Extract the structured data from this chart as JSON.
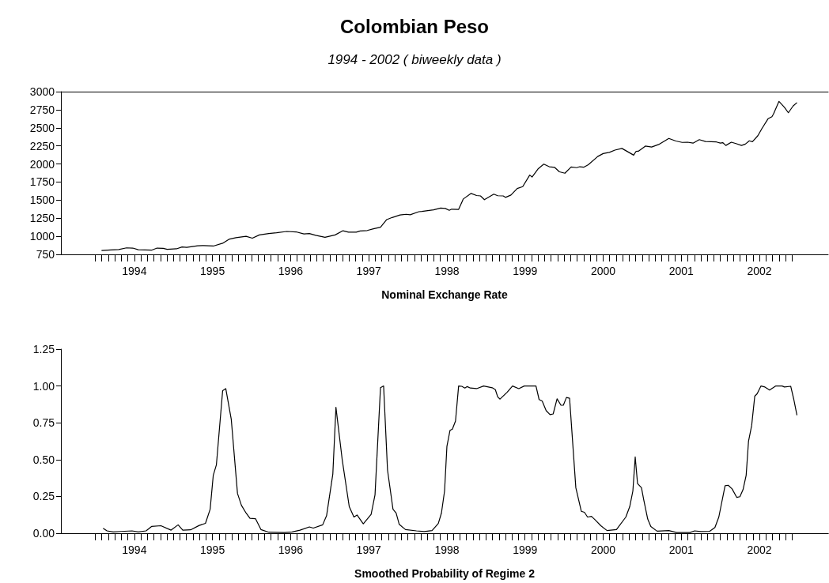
{
  "chart_data": [
    {
      "type": "line",
      "title": "Colombian Peso",
      "subtitle": "1994 - 2002 ( biweekly data )",
      "xlabel": "Nominal Exchange Rate",
      "color": "#000000",
      "line_style": "solid",
      "grid": false,
      "x": [
        1994.08,
        1994.2,
        1994.3,
        1994.4,
        1994.48,
        1994.55,
        1994.72,
        1994.79,
        1994.87,
        1994.92,
        1995.04,
        1995.11,
        1995.17,
        1995.31,
        1995.39,
        1995.51,
        1995.63,
        1995.71,
        1995.8,
        1995.93,
        1996.01,
        1996.1,
        1996.22,
        1996.32,
        1996.45,
        1996.57,
        1996.67,
        1996.74,
        1996.82,
        1996.94,
        1997.07,
        1997.17,
        1997.24,
        1997.34,
        1997.39,
        1997.48,
        1997.56,
        1997.65,
        1997.73,
        1997.8,
        1997.9,
        1997.98,
        1998.03,
        1998.14,
        1998.18,
        1998.33,
        1998.42,
        1998.48,
        1998.53,
        1998.56,
        1998.65,
        1998.71,
        1998.81,
        1998.88,
        1998.93,
        1998.98,
        1999.1,
        1999.15,
        1999.22,
        1999.25,
        1999.32,
        1999.4,
        1999.47,
        1999.56,
        1999.59,
        1999.67,
        1999.74,
        1999.81,
        1999.88,
        1999.94,
        2000.01,
        2000.09,
        2000.16,
        2000.2,
        2000.25,
        2000.31,
        2000.43,
        2000.5,
        2000.58,
        2000.65,
        2000.74,
        2000.89,
        2000.92,
        2000.95,
        2001.04,
        2001.12,
        2001.21,
        2001.34,
        2001.43,
        2001.51,
        2001.58,
        2001.65,
        2001.73,
        2001.81,
        2001.95,
        2002.0,
        2002.03,
        2002.07,
        2002.14,
        2002.2,
        2002.27,
        2002.32,
        2002.37,
        2002.41,
        2002.48,
        2002.53,
        2002.61,
        2002.66,
        2002.68,
        2002.75,
        2002.82,
        2002.87,
        2002.93,
        2002.98
      ],
      "values": [
        804,
        811,
        817,
        840,
        837,
        814,
        808,
        837,
        833,
        820,
        827,
        853,
        846,
        869,
        872,
        865,
        904,
        958,
        981,
        1000,
        974,
        1019,
        1038,
        1048,
        1067,
        1061,
        1032,
        1038,
        1013,
        987,
        1019,
        1077,
        1058,
        1058,
        1074,
        1080,
        1103,
        1125,
        1231,
        1260,
        1295,
        1304,
        1298,
        1340,
        1343,
        1365,
        1391,
        1385,
        1359,
        1375,
        1372,
        1516,
        1593,
        1564,
        1558,
        1506,
        1583,
        1561,
        1558,
        1538,
        1570,
        1660,
        1686,
        1846,
        1820,
        1936,
        1997,
        1962,
        1952,
        1891,
        1872,
        1958,
        1949,
        1962,
        1955,
        1990,
        2103,
        2144,
        2160,
        2192,
        2215,
        2122,
        2173,
        2176,
        2247,
        2234,
        2269,
        2353,
        2317,
        2298,
        2301,
        2288,
        2336,
        2311,
        2304,
        2288,
        2295,
        2256,
        2301,
        2282,
        2256,
        2275,
        2320,
        2307,
        2391,
        2487,
        2625,
        2654,
        2692,
        2865,
        2782,
        2708,
        2801,
        2849
      ],
      "xlim": [
        1993.56,
        2003.38
      ],
      "xticks": [
        {
          "value": 1994,
          "label": null
        },
        {
          "value": 1994.0833,
          "label": null
        },
        {
          "value": 1994.1667,
          "label": null
        },
        {
          "value": 1994.25,
          "label": null
        },
        {
          "value": 1994.3333,
          "label": null
        },
        {
          "value": 1994.4167,
          "label": null
        },
        {
          "value": 1994.5,
          "label": "1994"
        },
        {
          "value": 1994.5833,
          "label": null
        },
        {
          "value": 1994.6667,
          "label": null
        },
        {
          "value": 1994.75,
          "label": null
        },
        {
          "value": 1994.8333,
          "label": null
        },
        {
          "value": 1994.9167,
          "label": null
        },
        {
          "value": 1995,
          "label": null
        },
        {
          "value": 1995.0833,
          "label": null
        },
        {
          "value": 1995.1667,
          "label": null
        },
        {
          "value": 1995.25,
          "label": null
        },
        {
          "value": 1995.3333,
          "label": null
        },
        {
          "value": 1995.4167,
          "label": null
        },
        {
          "value": 1995.5,
          "label": "1995"
        },
        {
          "value": 1995.5833,
          "label": null
        },
        {
          "value": 1995.6667,
          "label": null
        },
        {
          "value": 1995.75,
          "label": null
        },
        {
          "value": 1995.8333,
          "label": null
        },
        {
          "value": 1995.9167,
          "label": null
        },
        {
          "value": 1996,
          "label": null
        },
        {
          "value": 1996.0833,
          "label": null
        },
        {
          "value": 1996.1667,
          "label": null
        },
        {
          "value": 1996.25,
          "label": null
        },
        {
          "value": 1996.3333,
          "label": null
        },
        {
          "value": 1996.4167,
          "label": null
        },
        {
          "value": 1996.5,
          "label": "1996"
        },
        {
          "value": 1996.5833,
          "label": null
        },
        {
          "value": 1996.6667,
          "label": null
        },
        {
          "value": 1996.75,
          "label": null
        },
        {
          "value": 1996.8333,
          "label": null
        },
        {
          "value": 1996.9167,
          "label": null
        },
        {
          "value": 1997,
          "label": null
        },
        {
          "value": 1997.0833,
          "label": null
        },
        {
          "value": 1997.1667,
          "label": null
        },
        {
          "value": 1997.25,
          "label": null
        },
        {
          "value": 1997.3333,
          "label": null
        },
        {
          "value": 1997.4167,
          "label": null
        },
        {
          "value": 1997.5,
          "label": "1997"
        },
        {
          "value": 1997.5833,
          "label": null
        },
        {
          "value": 1997.6667,
          "label": null
        },
        {
          "value": 1997.75,
          "label": null
        },
        {
          "value": 1997.8333,
          "label": null
        },
        {
          "value": 1997.9167,
          "label": null
        },
        {
          "value": 1998,
          "label": null
        },
        {
          "value": 1998.0833,
          "label": null
        },
        {
          "value": 1998.1667,
          "label": null
        },
        {
          "value": 1998.25,
          "label": null
        },
        {
          "value": 1998.3333,
          "label": null
        },
        {
          "value": 1998.4167,
          "label": null
        },
        {
          "value": 1998.5,
          "label": "1998"
        },
        {
          "value": 1998.5833,
          "label": null
        },
        {
          "value": 1998.6667,
          "label": null
        },
        {
          "value": 1998.75,
          "label": null
        },
        {
          "value": 1998.8333,
          "label": null
        },
        {
          "value": 1998.9167,
          "label": null
        },
        {
          "value": 1999,
          "label": null
        },
        {
          "value": 1999.0833,
          "label": null
        },
        {
          "value": 1999.1667,
          "label": null
        },
        {
          "value": 1999.25,
          "label": null
        },
        {
          "value": 1999.3333,
          "label": null
        },
        {
          "value": 1999.4167,
          "label": null
        },
        {
          "value": 1999.5,
          "label": "1999"
        },
        {
          "value": 1999.5833,
          "label": null
        },
        {
          "value": 1999.6667,
          "label": null
        },
        {
          "value": 1999.75,
          "label": null
        },
        {
          "value": 1999.8333,
          "label": null
        },
        {
          "value": 1999.9167,
          "label": null
        },
        {
          "value": 2000,
          "label": null
        },
        {
          "value": 2000.0833,
          "label": null
        },
        {
          "value": 2000.1667,
          "label": null
        },
        {
          "value": 2000.25,
          "label": null
        },
        {
          "value": 2000.3333,
          "label": null
        },
        {
          "value": 2000.4167,
          "label": null
        },
        {
          "value": 2000.5,
          "label": "2000"
        },
        {
          "value": 2000.5833,
          "label": null
        },
        {
          "value": 2000.6667,
          "label": null
        },
        {
          "value": 2000.75,
          "label": null
        },
        {
          "value": 2000.8333,
          "label": null
        },
        {
          "value": 2000.9167,
          "label": null
        },
        {
          "value": 2001,
          "label": null
        },
        {
          "value": 2001.0833,
          "label": null
        },
        {
          "value": 2001.1667,
          "label": null
        },
        {
          "value": 2001.25,
          "label": null
        },
        {
          "value": 2001.3333,
          "label": null
        },
        {
          "value": 2001.4167,
          "label": null
        },
        {
          "value": 2001.5,
          "label": "2001"
        },
        {
          "value": 2001.5833,
          "label": null
        },
        {
          "value": 2001.6667,
          "label": null
        },
        {
          "value": 2001.75,
          "label": null
        },
        {
          "value": 2001.8333,
          "label": null
        },
        {
          "value": 2001.9167,
          "label": null
        },
        {
          "value": 2002,
          "label": null
        },
        {
          "value": 2002.0833,
          "label": null
        },
        {
          "value": 2002.1667,
          "label": null
        },
        {
          "value": 2002.25,
          "label": null
        },
        {
          "value": 2002.3333,
          "label": null
        },
        {
          "value": 2002.4167,
          "label": null
        },
        {
          "value": 2002.5,
          "label": "2002"
        },
        {
          "value": 2002.5833,
          "label": null
        },
        {
          "value": 2002.6667,
          "label": null
        },
        {
          "value": 2002.75,
          "label": null
        },
        {
          "value": 2002.8333,
          "label": null
        },
        {
          "value": 2002.9167,
          "label": null
        }
      ],
      "ylim": [
        750,
        3000
      ],
      "yticks": [
        750,
        1000,
        1250,
        1500,
        1750,
        2000,
        2250,
        2500,
        2750,
        3000
      ]
    },
    {
      "type": "line",
      "xlabel": "Smoothed Probability of Regime 2",
      "color": "#000000",
      "line_style": "solid",
      "grid": false,
      "x": [
        1994.1,
        1994.15,
        1994.23,
        1994.33,
        1994.47,
        1994.55,
        1994.65,
        1994.72,
        1994.84,
        1994.97,
        1995.06,
        1995.12,
        1995.22,
        1995.33,
        1995.41,
        1995.47,
        1995.51,
        1995.55,
        1995.63,
        1995.67,
        1995.74,
        1995.82,
        1995.87,
        1995.93,
        1995.98,
        1996.05,
        1996.12,
        1996.22,
        1996.42,
        1996.52,
        1996.62,
        1996.74,
        1996.79,
        1996.91,
        1996.96,
        1997.04,
        1997.08,
        1997.16,
        1997.25,
        1997.31,
        1997.35,
        1997.43,
        1997.53,
        1997.58,
        1997.65,
        1997.69,
        1997.74,
        1997.81,
        1997.85,
        1997.89,
        1997.97,
        1998.11,
        1998.21,
        1998.31,
        1998.39,
        1998.43,
        1998.47,
        1998.5,
        1998.54,
        1998.57,
        1998.61,
        1998.65,
        1998.69,
        1998.73,
        1998.76,
        1998.8,
        1998.88,
        1998.97,
        1999.08,
        1999.12,
        1999.15,
        1999.18,
        1999.27,
        1999.34,
        1999.42,
        1999.49,
        1999.64,
        1999.68,
        1999.72,
        1999.77,
        1999.82,
        1999.86,
        1999.91,
        1999.96,
        1999.99,
        2000.03,
        2000.07,
        2000.15,
        2000.22,
        2000.26,
        2000.3,
        2000.35,
        2000.4,
        2000.47,
        2000.55,
        2000.67,
        2000.79,
        2000.84,
        2000.88,
        2000.91,
        2000.94,
        2000.99,
        2001.02,
        2001.07,
        2001.11,
        2001.19,
        2001.34,
        2001.44,
        2001.61,
        2001.67,
        2001.75,
        2001.86,
        2001.93,
        2001.98,
        2002.06,
        2002.1,
        2002.15,
        2002.21,
        2002.25,
        2002.29,
        2002.33,
        2002.36,
        2002.4,
        2002.44,
        2002.47,
        2002.52,
        2002.57,
        2002.63,
        2002.71,
        2002.79,
        2002.82,
        2002.9,
        2002.94,
        2002.98
      ],
      "values": [
        0.034,
        0.016,
        0.009,
        0.012,
        0.016,
        0.009,
        0.016,
        0.046,
        0.051,
        0.021,
        0.057,
        0.021,
        0.023,
        0.053,
        0.067,
        0.163,
        0.394,
        0.465,
        0.968,
        0.982,
        0.775,
        0.27,
        0.19,
        0.137,
        0.101,
        0.099,
        0.025,
        0.007,
        0.005,
        0.009,
        0.021,
        0.043,
        0.035,
        0.057,
        0.119,
        0.402,
        0.855,
        0.5,
        0.181,
        0.11,
        0.124,
        0.064,
        0.128,
        0.261,
        0.988,
        1.0,
        0.429,
        0.163,
        0.137,
        0.06,
        0.025,
        0.016,
        0.011,
        0.018,
        0.066,
        0.137,
        0.287,
        0.589,
        0.699,
        0.707,
        0.762,
        1.0,
        0.998,
        0.986,
        0.996,
        0.986,
        0.982,
        1.0,
        0.988,
        0.975,
        0.926,
        0.911,
        0.957,
        1.0,
        0.982,
        1.0,
        1.0,
        0.908,
        0.897,
        0.833,
        0.805,
        0.81,
        0.913,
        0.869,
        0.869,
        0.922,
        0.917,
        0.309,
        0.149,
        0.142,
        0.11,
        0.115,
        0.089,
        0.051,
        0.018,
        0.025,
        0.11,
        0.181,
        0.287,
        0.518,
        0.337,
        0.309,
        0.225,
        0.096,
        0.046,
        0.014,
        0.018,
        0.005,
        0.005,
        0.016,
        0.011,
        0.012,
        0.039,
        0.11,
        0.323,
        0.326,
        0.301,
        0.243,
        0.248,
        0.296,
        0.394,
        0.624,
        0.73,
        0.931,
        0.947,
        1.0,
        0.993,
        0.972,
        1.0,
        1.0,
        0.993,
        0.998,
        0.908,
        0.801
      ],
      "xlim": [
        1993.56,
        2003.38
      ],
      "xticks": [
        {
          "value": 1994,
          "label": null
        },
        {
          "value": 1994.0833,
          "label": null
        },
        {
          "value": 1994.1667,
          "label": null
        },
        {
          "value": 1994.25,
          "label": null
        },
        {
          "value": 1994.3333,
          "label": null
        },
        {
          "value": 1994.4167,
          "label": null
        },
        {
          "value": 1994.5,
          "label": "1994"
        },
        {
          "value": 1994.5833,
          "label": null
        },
        {
          "value": 1994.6667,
          "label": null
        },
        {
          "value": 1994.75,
          "label": null
        },
        {
          "value": 1994.8333,
          "label": null
        },
        {
          "value": 1994.9167,
          "label": null
        },
        {
          "value": 1995,
          "label": null
        },
        {
          "value": 1995.0833,
          "label": null
        },
        {
          "value": 1995.1667,
          "label": null
        },
        {
          "value": 1995.25,
          "label": null
        },
        {
          "value": 1995.3333,
          "label": null
        },
        {
          "value": 1995.4167,
          "label": null
        },
        {
          "value": 1995.5,
          "label": "1995"
        },
        {
          "value": 1995.5833,
          "label": null
        },
        {
          "value": 1995.6667,
          "label": null
        },
        {
          "value": 1995.75,
          "label": null
        },
        {
          "value": 1995.8333,
          "label": null
        },
        {
          "value": 1995.9167,
          "label": null
        },
        {
          "value": 1996,
          "label": null
        },
        {
          "value": 1996.0833,
          "label": null
        },
        {
          "value": 1996.1667,
          "label": null
        },
        {
          "value": 1996.25,
          "label": null
        },
        {
          "value": 1996.3333,
          "label": null
        },
        {
          "value": 1996.4167,
          "label": null
        },
        {
          "value": 1996.5,
          "label": "1996"
        },
        {
          "value": 1996.5833,
          "label": null
        },
        {
          "value": 1996.6667,
          "label": null
        },
        {
          "value": 1996.75,
          "label": null
        },
        {
          "value": 1996.8333,
          "label": null
        },
        {
          "value": 1996.9167,
          "label": null
        },
        {
          "value": 1997,
          "label": null
        },
        {
          "value": 1997.0833,
          "label": null
        },
        {
          "value": 1997.1667,
          "label": null
        },
        {
          "value": 1997.25,
          "label": null
        },
        {
          "value": 1997.3333,
          "label": null
        },
        {
          "value": 1997.4167,
          "label": null
        },
        {
          "value": 1997.5,
          "label": "1997"
        },
        {
          "value": 1997.5833,
          "label": null
        },
        {
          "value": 1997.6667,
          "label": null
        },
        {
          "value": 1997.75,
          "label": null
        },
        {
          "value": 1997.8333,
          "label": null
        },
        {
          "value": 1997.9167,
          "label": null
        },
        {
          "value": 1998,
          "label": null
        },
        {
          "value": 1998.0833,
          "label": null
        },
        {
          "value": 1998.1667,
          "label": null
        },
        {
          "value": 1998.25,
          "label": null
        },
        {
          "value": 1998.3333,
          "label": null
        },
        {
          "value": 1998.4167,
          "label": null
        },
        {
          "value": 1998.5,
          "label": "1998"
        },
        {
          "value": 1998.5833,
          "label": null
        },
        {
          "value": 1998.6667,
          "label": null
        },
        {
          "value": 1998.75,
          "label": null
        },
        {
          "value": 1998.8333,
          "label": null
        },
        {
          "value": 1998.9167,
          "label": null
        },
        {
          "value": 1999,
          "label": null
        },
        {
          "value": 1999.0833,
          "label": null
        },
        {
          "value": 1999.1667,
          "label": null
        },
        {
          "value": 1999.25,
          "label": null
        },
        {
          "value": 1999.3333,
          "label": null
        },
        {
          "value": 1999.4167,
          "label": null
        },
        {
          "value": 1999.5,
          "label": "1999"
        },
        {
          "value": 1999.5833,
          "label": null
        },
        {
          "value": 1999.6667,
          "label": null
        },
        {
          "value": 1999.75,
          "label": null
        },
        {
          "value": 1999.8333,
          "label": null
        },
        {
          "value": 1999.9167,
          "label": null
        },
        {
          "value": 2000,
          "label": null
        },
        {
          "value": 2000.0833,
          "label": null
        },
        {
          "value": 2000.1667,
          "label": null
        },
        {
          "value": 2000.25,
          "label": null
        },
        {
          "value": 2000.3333,
          "label": null
        },
        {
          "value": 2000.4167,
          "label": null
        },
        {
          "value": 2000.5,
          "label": "2000"
        },
        {
          "value": 2000.5833,
          "label": null
        },
        {
          "value": 2000.6667,
          "label": null
        },
        {
          "value": 2000.75,
          "label": null
        },
        {
          "value": 2000.8333,
          "label": null
        },
        {
          "value": 2000.9167,
          "label": null
        },
        {
          "value": 2001,
          "label": null
        },
        {
          "value": 2001.0833,
          "label": null
        },
        {
          "value": 2001.1667,
          "label": null
        },
        {
          "value": 2001.25,
          "label": null
        },
        {
          "value": 2001.3333,
          "label": null
        },
        {
          "value": 2001.4167,
          "label": null
        },
        {
          "value": 2001.5,
          "label": "2001"
        },
        {
          "value": 2001.5833,
          "label": null
        },
        {
          "value": 2001.6667,
          "label": null
        },
        {
          "value": 2001.75,
          "label": null
        },
        {
          "value": 2001.8333,
          "label": null
        },
        {
          "value": 2001.9167,
          "label": null
        },
        {
          "value": 2002,
          "label": null
        },
        {
          "value": 2002.0833,
          "label": null
        },
        {
          "value": 2002.1667,
          "label": null
        },
        {
          "value": 2002.25,
          "label": null
        },
        {
          "value": 2002.3333,
          "label": null
        },
        {
          "value": 2002.4167,
          "label": null
        },
        {
          "value": 2002.5,
          "label": "2002"
        },
        {
          "value": 2002.5833,
          "label": null
        },
        {
          "value": 2002.6667,
          "label": null
        },
        {
          "value": 2002.75,
          "label": null
        },
        {
          "value": 2002.8333,
          "label": null
        },
        {
          "value": 2002.9167,
          "label": null
        }
      ],
      "ylim": [
        0,
        1.25
      ],
      "yticks": [
        {
          "value": 0,
          "label": "0.00"
        },
        {
          "value": 0.25,
          "label": "0.25"
        },
        {
          "value": 0.5,
          "label": "0.50"
        },
        {
          "value": 0.75,
          "label": "0.75"
        },
        {
          "value": 1,
          "label": "1.00"
        },
        {
          "value": 1.25,
          "label": "1.25"
        }
      ]
    }
  ]
}
